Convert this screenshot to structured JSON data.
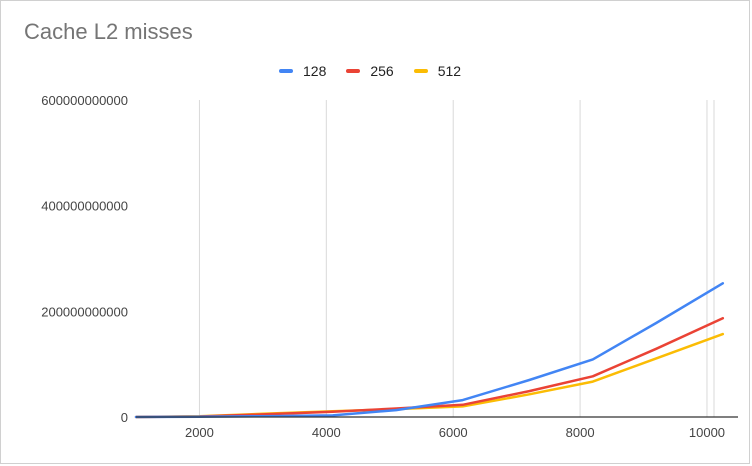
{
  "chart_data": {
    "type": "line",
    "title": "Cache L2 misses",
    "xlabel": "",
    "ylabel": "",
    "xlim": [
      1000,
      10300
    ],
    "ylim": [
      0,
      600000000000
    ],
    "x_ticks": [
      2000,
      4000,
      6000,
      8000,
      10000
    ],
    "y_ticks": [
      0,
      200000000000,
      400000000000,
      600000000000
    ],
    "x_tick_labels": [
      "2000",
      "4000",
      "6000",
      "8000",
      "10000"
    ],
    "y_tick_labels": [
      "0",
      "200000000000",
      "400000000000",
      "600000000000"
    ],
    "grid": "vertical",
    "legend_position": "top",
    "series": [
      {
        "name": "128",
        "color": "#4285F4",
        "x": [
          1000,
          2000,
          3000,
          4100,
          5100,
          6150,
          7200,
          8200,
          9200,
          10250
        ],
        "values": [
          0,
          500000000,
          1500000000,
          3000000000,
          13000000000,
          32000000000,
          70000000000,
          109000000000,
          178000000000,
          253000000000
        ]
      },
      {
        "name": "256",
        "color": "#EA4335",
        "x": [
          1000,
          2000,
          3000,
          4100,
          5100,
          6150,
          7200,
          8200,
          9200,
          10250
        ],
        "values": [
          0,
          1000000000,
          5000000000,
          10000000000,
          16000000000,
          23000000000,
          49000000000,
          77000000000,
          129000000000,
          187000000000
        ]
      },
      {
        "name": "512",
        "color": "#FBBC04",
        "x": [
          1000,
          2000,
          3000,
          4100,
          5100,
          6150,
          7200,
          8200,
          9200,
          10250
        ],
        "values": [
          0,
          1500000000,
          6000000000,
          11000000000,
          15000000000,
          20000000000,
          43000000000,
          67000000000,
          111000000000,
          157000000000
        ]
      }
    ]
  }
}
